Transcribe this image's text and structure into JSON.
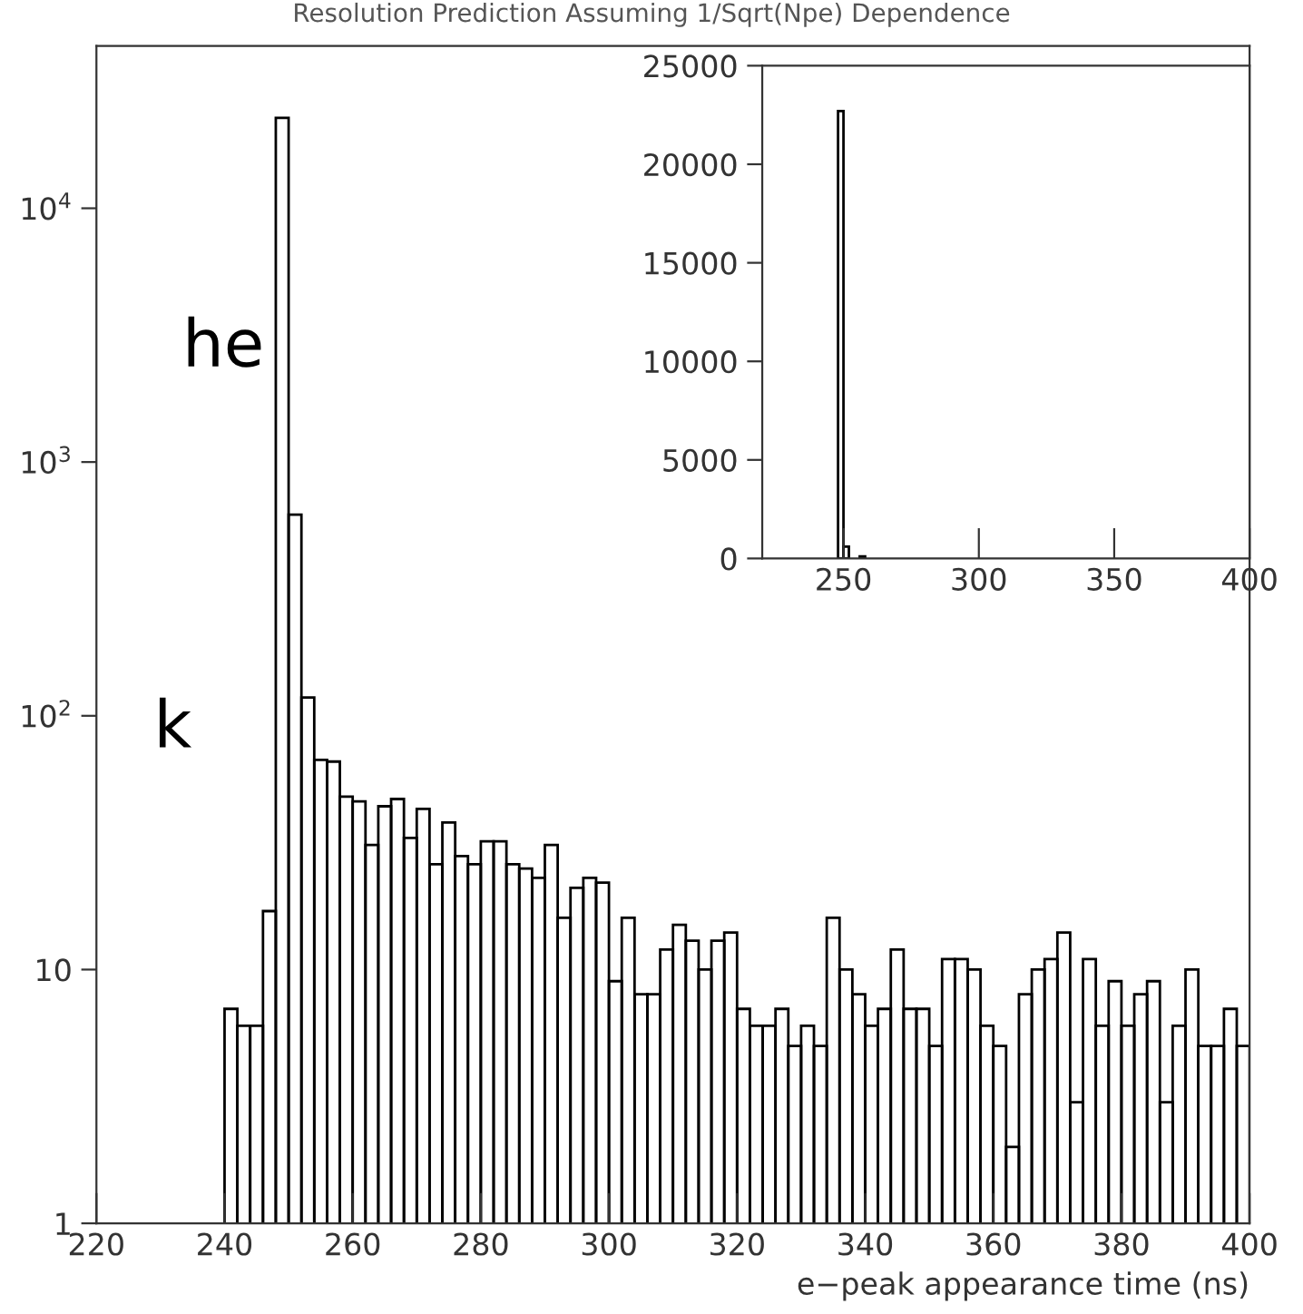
{
  "chart_data": [
    {
      "type": "histogram",
      "title": "Resolution Prediction Assuming 1/Sqrt(Npe) Dependence",
      "xlabel": "e−peak appearance time (ns)",
      "bins": [
        240,
        242,
        244,
        246,
        248,
        250,
        252,
        254,
        256,
        258,
        260,
        262,
        264,
        266,
        268,
        270,
        272,
        274,
        276,
        278,
        280,
        282,
        284,
        286,
        288,
        290,
        292,
        294,
        296,
        298,
        300,
        302,
        304,
        306,
        308,
        310,
        312,
        314,
        316,
        318,
        320,
        322,
        324,
        326,
        328,
        330,
        332,
        334,
        336,
        338,
        340,
        342,
        344,
        346,
        348,
        350,
        352,
        354,
        356,
        358,
        360,
        362,
        364,
        366,
        368,
        370,
        372,
        374,
        376,
        378,
        380,
        382,
        384,
        386,
        388,
        390,
        392,
        394,
        396,
        398,
        400
      ],
      "values": [
        7,
        6,
        6,
        17,
        22700,
        620,
        118,
        67,
        66,
        48,
        46,
        31,
        44,
        47,
        33,
        43,
        26,
        38,
        28,
        26,
        32,
        32,
        26,
        25,
        23,
        31,
        16,
        21,
        23,
        22,
        9,
        16,
        8,
        8,
        12,
        15,
        13,
        10,
        13,
        14,
        7,
        6,
        6,
        7,
        5,
        6,
        5,
        16,
        10,
        8,
        6,
        7,
        12,
        7,
        7,
        5,
        11,
        11,
        10,
        6,
        5,
        2,
        8,
        10,
        11,
        14,
        3,
        11,
        6,
        9,
        6,
        8,
        9,
        3,
        6,
        10,
        5,
        5,
        7,
        5
      ],
      "color": "#000000",
      "log": true,
      "xlim": [
        220,
        400
      ],
      "xticks": [
        220,
        240,
        260,
        280,
        300,
        320,
        340,
        360,
        380,
        400
      ],
      "ylim": [
        1,
        43600
      ],
      "yticks": [
        1,
        10,
        {
          "value": 100,
          "label": "10$^{2}$"
        },
        {
          "value": 1000,
          "label": "10$^{3}$"
        },
        {
          "value": 10000,
          "label": "10$^{4}$"
        }
      ],
      "annotations": [
        "he",
        "k"
      ]
    },
    {
      "type": "histogram",
      "bins": [
        248,
        250,
        252,
        254,
        256,
        258
      ],
      "values": [
        22700,
        600,
        null,
        null,
        100
      ],
      "color": "#000000",
      "xlim": [
        220,
        400
      ],
      "xticks": [
        250,
        300,
        350,
        400
      ],
      "ylim": [
        0,
        25000
      ],
      "yticks": [
        0,
        5000,
        10000,
        15000,
        20000,
        25000
      ]
    }
  ]
}
